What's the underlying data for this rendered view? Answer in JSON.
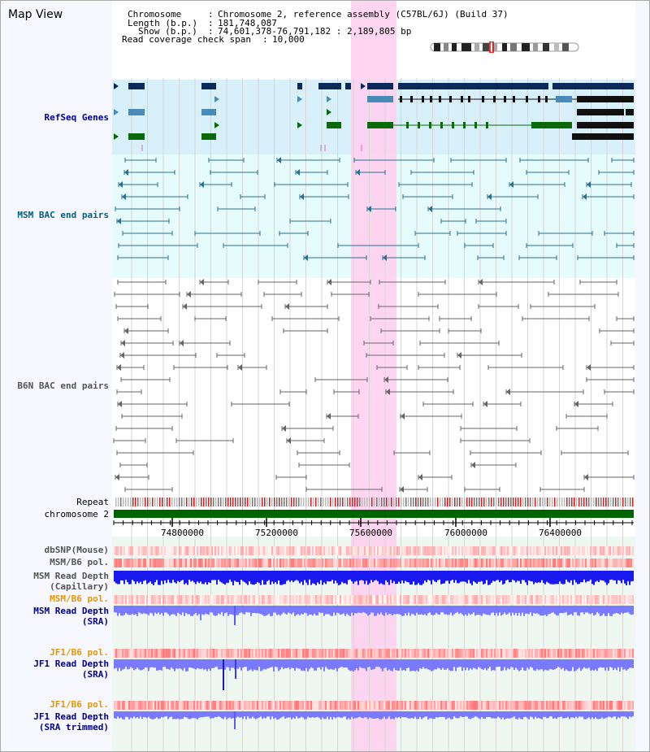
{
  "view": {
    "title": "Map View"
  },
  "info": {
    "chromosome_label": "Chromosome",
    "chromosome_value": "Chromosome 2, reference assembly (C57BL/6J) (Build 37)",
    "length_label": "Length (b.p.)",
    "length_value": "181,748,087",
    "show_label": "Show (b.p.)",
    "show_value": "74,601,378-76,791,182 : 2,189,805 bp",
    "coverage_label": "Read coverage check span",
    "coverage_value": "10,000"
  },
  "tracks": {
    "refseq": "RefSeq Genes",
    "msm_bac": "MSM BAC end pairs",
    "b6n_bac": "B6N BAC end pairs",
    "repeat": "Repeat",
    "chromosome": "chromosome 2",
    "dbsnp": "dbSNP(Mouse)",
    "msm_b6_pol_1": "MSM/B6 pol.",
    "msm_read_depth_cap_1": "MSM Read Depth",
    "msm_read_depth_cap_2": "(Capillary)",
    "msm_b6_pol_2": "MSM/B6 pol.",
    "msm_read_depth_sra_1": "MSM Read Depth",
    "msm_read_depth_sra_2": "(SRA)",
    "jf1_b6_pol_1": "JF1/B6 pol.",
    "jf1_read_depth_sra_1": "JF1 Read Depth",
    "jf1_read_depth_sra_2": "(SRA)",
    "jf1_b6_pol_2": "JF1/B6 pol.",
    "jf1_read_depth_trim_1": "JF1 Read Depth",
    "jf1_read_depth_trim_2": "(SRA trimmed)"
  },
  "axis": {
    "ticks": [
      "74800000",
      "75200000",
      "75600000",
      "76000000",
      "76400000"
    ]
  },
  "colors": {
    "highlight": "#ffd0f0",
    "refseq_bg": "#d8f0fa",
    "bac_bg": "#e6fbfb",
    "lower_bg": "#eef8f0",
    "gene_navy": "#0b2a5a",
    "gene_steel": "#4a8ab8",
    "gene_green": "#0a6a0a",
    "msm_bac": "#2a7090",
    "b6n_bac": "#666666",
    "chromosome": "#006400",
    "depth_blue": "#1a1aee",
    "depth_light": "#7a7aff"
  }
}
